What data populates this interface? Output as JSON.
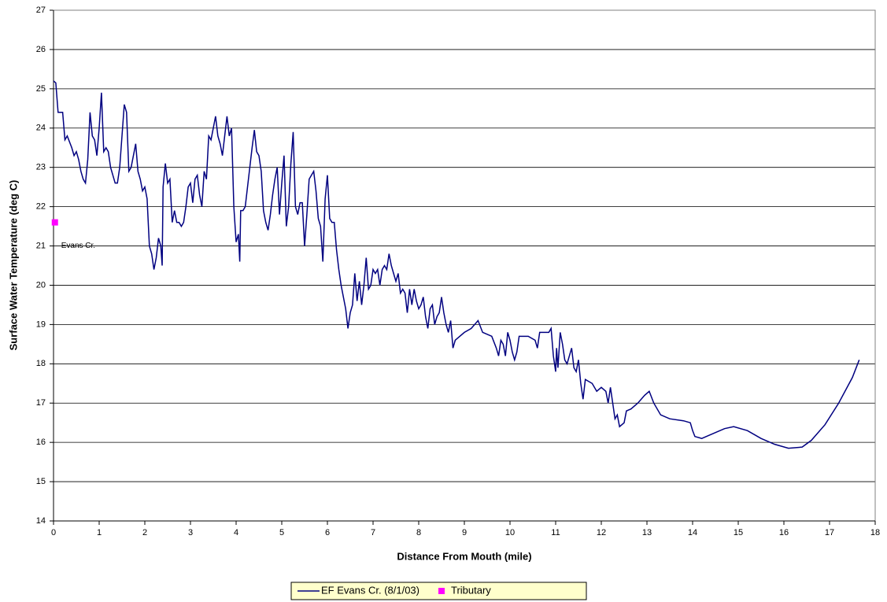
{
  "chart_data": {
    "type": "line",
    "xlabel": "Distance From Mouth (mile)",
    "ylabel": "Surface Water Temperature (deg C)",
    "xlim": [
      0,
      18
    ],
    "xticks": [
      0,
      1,
      2,
      3,
      4,
      5,
      6,
      7,
      8,
      9,
      10,
      11,
      12,
      13,
      14,
      15,
      16,
      17,
      18
    ],
    "ylim": [
      14,
      27
    ],
    "yticks": [
      14,
      15,
      16,
      17,
      18,
      19,
      20,
      21,
      22,
      23,
      24,
      25,
      26,
      27
    ],
    "grid": true,
    "legend": "bottom",
    "annotation": "Evans Cr.",
    "series": [
      {
        "name": "EF Evans Cr. (8/1/03)",
        "type": "line",
        "color": "#000080",
        "x": [
          0,
          0.05,
          0.1,
          0.2,
          0.25,
          0.3,
          0.4,
          0.45,
          0.5,
          0.55,
          0.6,
          0.65,
          0.7,
          0.75,
          0.8,
          0.85,
          0.9,
          0.95,
          1.0,
          1.05,
          1.1,
          1.15,
          1.2,
          1.25,
          1.3,
          1.35,
          1.4,
          1.45,
          1.5,
          1.55,
          1.6,
          1.65,
          1.7,
          1.75,
          1.8,
          1.85,
          1.9,
          1.95,
          2.0,
          2.05,
          2.1,
          2.15,
          2.2,
          2.25,
          2.3,
          2.35,
          2.38,
          2.4,
          2.45,
          2.5,
          2.55,
          2.6,
          2.65,
          2.7,
          2.75,
          2.8,
          2.85,
          2.9,
          2.95,
          3.0,
          3.05,
          3.1,
          3.15,
          3.2,
          3.25,
          3.3,
          3.35,
          3.4,
          3.45,
          3.5,
          3.55,
          3.6,
          3.65,
          3.7,
          3.75,
          3.8,
          3.85,
          3.9,
          3.95,
          4.0,
          4.05,
          4.08,
          4.1,
          4.15,
          4.2,
          4.25,
          4.3,
          4.35,
          4.4,
          4.45,
          4.5,
          4.55,
          4.6,
          4.65,
          4.7,
          4.75,
          4.8,
          4.85,
          4.9,
          4.95,
          5.0,
          5.05,
          5.1,
          5.15,
          5.2,
          5.25,
          5.3,
          5.35,
          5.4,
          5.45,
          5.5,
          5.55,
          5.6,
          5.65,
          5.7,
          5.75,
          5.8,
          5.85,
          5.9,
          5.95,
          6.0,
          6.05,
          6.1,
          6.15,
          6.2,
          6.25,
          6.3,
          6.35,
          6.4,
          6.45,
          6.5,
          6.55,
          6.6,
          6.65,
          6.7,
          6.75,
          6.8,
          6.85,
          6.9,
          6.95,
          7.0,
          7.05,
          7.1,
          7.15,
          7.2,
          7.25,
          7.3,
          7.35,
          7.4,
          7.45,
          7.5,
          7.55,
          7.6,
          7.65,
          7.7,
          7.75,
          7.8,
          7.85,
          7.9,
          7.95,
          8.0,
          8.05,
          8.1,
          8.15,
          8.2,
          8.25,
          8.3,
          8.35,
          8.4,
          8.45,
          8.5,
          8.55,
          8.6,
          8.65,
          8.7,
          8.75,
          8.8,
          9.0,
          9.15,
          9.3,
          9.4,
          9.6,
          9.7,
          9.75,
          9.8,
          9.85,
          9.9,
          9.95,
          10.0,
          10.05,
          10.1,
          10.15,
          10.2,
          10.4,
          10.55,
          10.6,
          10.65,
          10.85,
          10.9,
          10.95,
          11.0,
          11.02,
          11.05,
          11.1,
          11.15,
          11.2,
          11.25,
          11.3,
          11.35,
          11.4,
          11.45,
          11.5,
          11.55,
          11.6,
          11.65,
          11.8,
          11.9,
          12.0,
          12.1,
          12.15,
          12.2,
          12.25,
          12.3,
          12.35,
          12.4,
          12.5,
          12.55,
          12.65,
          12.8,
          12.95,
          13.05,
          13.15,
          13.3,
          13.5,
          13.8,
          13.95,
          14.0,
          14.05,
          14.2,
          14.4,
          14.7,
          14.9,
          15.2,
          15.5,
          15.8,
          16.1,
          16.4,
          16.6,
          16.9,
          17.2,
          17.5,
          17.65
        ],
        "values": [
          25.2,
          25.15,
          24.4,
          24.4,
          23.7,
          23.8,
          23.5,
          23.3,
          23.4,
          23.2,
          22.9,
          22.7,
          22.6,
          23.2,
          24.4,
          23.8,
          23.7,
          23.3,
          24.0,
          24.9,
          23.4,
          23.5,
          23.4,
          23.0,
          22.8,
          22.6,
          22.6,
          23.0,
          23.8,
          24.6,
          24.4,
          22.9,
          23.0,
          23.3,
          23.6,
          22.9,
          22.7,
          22.4,
          22.5,
          22.2,
          21.0,
          20.8,
          20.4,
          20.7,
          21.2,
          21.0,
          20.5,
          22.5,
          23.1,
          22.6,
          22.7,
          21.6,
          21.9,
          21.6,
          21.6,
          21.5,
          21.6,
          22.0,
          22.5,
          22.6,
          22.1,
          22.7,
          22.8,
          22.3,
          22.0,
          22.9,
          22.7,
          23.8,
          23.7,
          24.0,
          24.3,
          23.8,
          23.6,
          23.3,
          23.8,
          24.3,
          23.8,
          24.0,
          22.0,
          21.1,
          21.3,
          20.6,
          21.9,
          21.9,
          22.0,
          22.5,
          23.0,
          23.5,
          23.95,
          23.4,
          23.3,
          22.9,
          21.9,
          21.6,
          21.4,
          21.8,
          22.3,
          22.7,
          23.0,
          21.8,
          22.6,
          23.3,
          21.5,
          22.0,
          23.1,
          23.9,
          22.0,
          21.8,
          22.1,
          22.1,
          21.0,
          21.8,
          22.7,
          22.8,
          22.9,
          22.4,
          21.7,
          21.5,
          20.6,
          22.2,
          22.8,
          21.7,
          21.6,
          21.6,
          20.9,
          20.4,
          20.0,
          19.7,
          19.4,
          18.9,
          19.3,
          19.5,
          20.3,
          19.6,
          20.1,
          19.5,
          20.0,
          20.7,
          19.9,
          20.0,
          20.4,
          20.3,
          20.4,
          20.0,
          20.4,
          20.5,
          20.4,
          20.8,
          20.5,
          20.3,
          20.1,
          20.3,
          19.8,
          19.9,
          19.8,
          19.3,
          19.9,
          19.5,
          19.9,
          19.6,
          19.4,
          19.5,
          19.7,
          19.2,
          18.9,
          19.4,
          19.5,
          19.0,
          19.2,
          19.3,
          19.7,
          19.3,
          19.0,
          18.8,
          19.1,
          18.4,
          18.6,
          18.8,
          18.9,
          19.1,
          18.8,
          18.7,
          18.4,
          18.2,
          18.6,
          18.5,
          18.2,
          18.8,
          18.6,
          18.3,
          18.1,
          18.3,
          18.7,
          18.7,
          18.6,
          18.4,
          18.8,
          18.8,
          18.9,
          18.2,
          17.8,
          18.4,
          17.9,
          18.8,
          18.5,
          18.1,
          18.0,
          18.2,
          18.4,
          17.9,
          17.8,
          18.1,
          17.5,
          17.1,
          17.6,
          17.5,
          17.3,
          17.4,
          17.3,
          17.0,
          17.4,
          17.0,
          16.6,
          16.7,
          16.4,
          16.5,
          16.8,
          16.85,
          17.0,
          17.2,
          17.3,
          17.0,
          16.7,
          16.6,
          16.55,
          16.5,
          16.3,
          16.15,
          16.1,
          16.2,
          16.35,
          16.4,
          16.3,
          16.1,
          15.95,
          15.85,
          15.88,
          16.05,
          16.45,
          17.0,
          17.65,
          18.1
        ]
      },
      {
        "name": "Tributary",
        "type": "scatter",
        "color": "#ff00ff",
        "x": [
          0.03
        ],
        "values": [
          21.6
        ]
      }
    ]
  }
}
